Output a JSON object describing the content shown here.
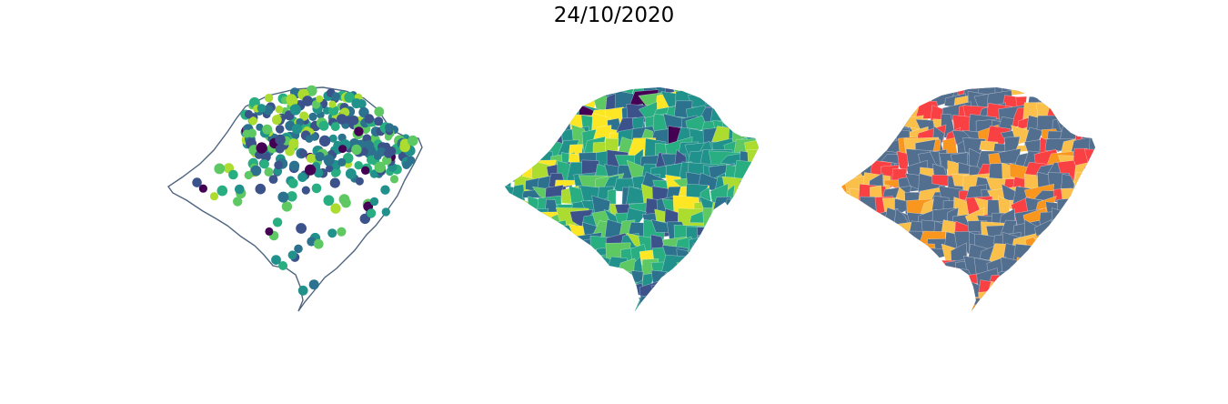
{
  "figure": {
    "title": "24/10/2020"
  },
  "panels": [
    {
      "kind": "scatter-points",
      "outline_color": "#4f6580",
      "palette": [
        "#440154",
        "#3b528b",
        "#2c728e",
        "#21918c",
        "#28ae80",
        "#5ec962",
        "#addc30",
        "#fde725"
      ]
    },
    {
      "kind": "choropleth-continuous",
      "palette": [
        "#440154",
        "#3b528b",
        "#2c728e",
        "#21918c",
        "#28ae80",
        "#5ec962",
        "#addc30",
        "#fde725"
      ]
    },
    {
      "kind": "choropleth-categorical",
      "palette": [
        "#536f8f",
        "#fbc04a",
        "#f8961e",
        "#f94144"
      ]
    }
  ]
}
